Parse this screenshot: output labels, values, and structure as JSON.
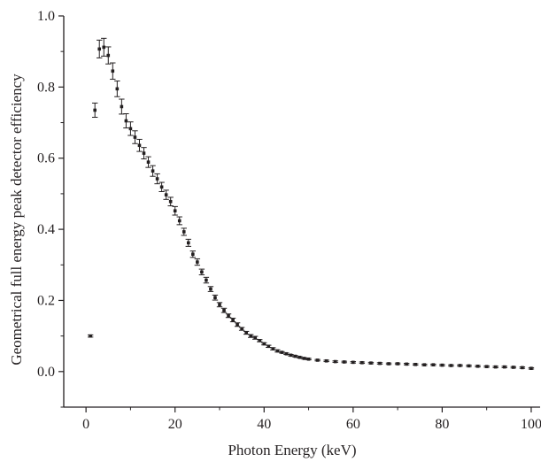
{
  "chart_data": {
    "type": "scatter",
    "title": "",
    "xlabel": "Photon Energy (keV)",
    "ylabel": "Geometrical full energy peak detector efficiency",
    "xlim": [
      -5,
      102
    ],
    "ylim": [
      -0.1,
      1.0
    ],
    "xticks": [
      "0",
      "20",
      "40",
      "60",
      "80",
      "100"
    ],
    "yticks": [
      "0.0",
      "0.2",
      "0.4",
      "0.6",
      "0.8",
      "1.0"
    ],
    "grid": false,
    "legend": "none",
    "colors": {
      "marker": "#231f20",
      "axis": "#231f20"
    },
    "series": [
      {
        "x": [
          1,
          2,
          3,
          4,
          5,
          6,
          7,
          8,
          9,
          10,
          11,
          12,
          13,
          14,
          15,
          16,
          17,
          18,
          19,
          20,
          21,
          22,
          23,
          24,
          25,
          26,
          27,
          28,
          29,
          30,
          31,
          32,
          33,
          34,
          35,
          36,
          37,
          38,
          39,
          40,
          41,
          42,
          43,
          44,
          45,
          46,
          47,
          48,
          49,
          50,
          52,
          54,
          56,
          58,
          60,
          62,
          64,
          66,
          68,
          70,
          72,
          74,
          76,
          78,
          80,
          82,
          84,
          86,
          88,
          90,
          92,
          94,
          96,
          98,
          100
        ],
        "y": [
          0.1,
          0.735,
          0.907,
          0.912,
          0.889,
          0.845,
          0.795,
          0.745,
          0.705,
          0.683,
          0.659,
          0.636,
          0.614,
          0.589,
          0.564,
          0.542,
          0.519,
          0.497,
          0.478,
          0.452,
          0.424,
          0.393,
          0.362,
          0.33,
          0.308,
          0.28,
          0.257,
          0.232,
          0.208,
          0.188,
          0.172,
          0.157,
          0.145,
          0.132,
          0.12,
          0.109,
          0.1,
          0.095,
          0.087,
          0.078,
          0.071,
          0.064,
          0.058,
          0.054,
          0.05,
          0.046,
          0.043,
          0.04,
          0.037,
          0.035,
          0.032,
          0.03,
          0.028,
          0.027,
          0.026,
          0.025,
          0.024,
          0.023,
          0.022,
          0.022,
          0.021,
          0.02,
          0.019,
          0.019,
          0.018,
          0.017,
          0.017,
          0.016,
          0.015,
          0.014,
          0.013,
          0.013,
          0.012,
          0.011,
          0.009
        ],
        "err": [
          0.003,
          0.02,
          0.025,
          0.025,
          0.024,
          0.023,
          0.022,
          0.021,
          0.02,
          0.019,
          0.018,
          0.017,
          0.016,
          0.015,
          0.015,
          0.014,
          0.013,
          0.013,
          0.012,
          0.012,
          0.011,
          0.01,
          0.01,
          0.009,
          0.009,
          0.008,
          0.008,
          0.007,
          0.007,
          0.006,
          0.006,
          0.005,
          0.005,
          0.005,
          0.004,
          0.004,
          0.004,
          0.004,
          0.003,
          0.003,
          0.003,
          0.003,
          0.003,
          0.002,
          0.002,
          0.002,
          0.002,
          0.002,
          0.002,
          0.002,
          0.002,
          0.002,
          0.002,
          0.002,
          0.002,
          0.002,
          0.002,
          0.002,
          0.002,
          0.002,
          0.002,
          0.002,
          0.002,
          0.002,
          0.002,
          0.002,
          0.002,
          0.002,
          0.002,
          0.002,
          0.002,
          0.002,
          0.002,
          0.002,
          0.002
        ]
      }
    ]
  }
}
